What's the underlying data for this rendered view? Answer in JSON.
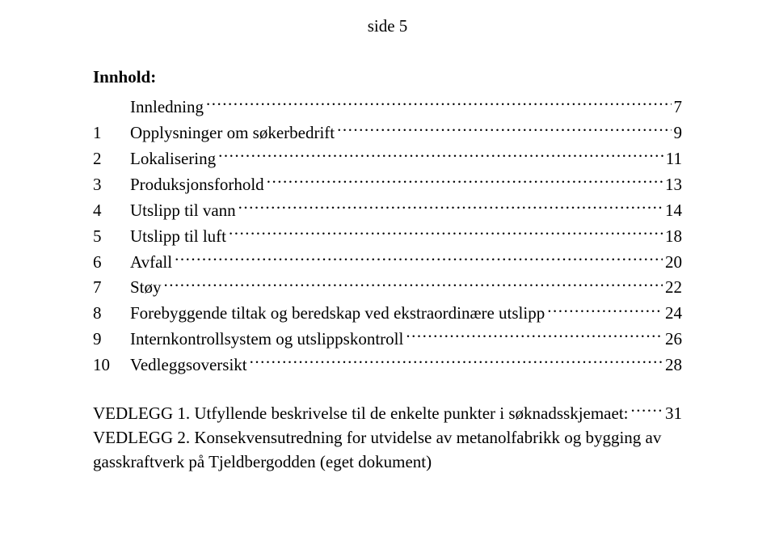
{
  "pageLabel": "side 5",
  "heading": "Innhold:",
  "toc": [
    {
      "num": "",
      "title": "Innledning",
      "page": "7"
    },
    {
      "num": "1",
      "title": "Opplysninger om søkerbedrift",
      "page": "9"
    },
    {
      "num": "2",
      "title": "Lokalisering",
      "page": "11"
    },
    {
      "num": "3",
      "title": "Produksjonsforhold",
      "page": "13"
    },
    {
      "num": "4",
      "title": "Utslipp til vann",
      "page": "14"
    },
    {
      "num": "5",
      "title": "Utslipp til luft",
      "page": "18"
    },
    {
      "num": "6",
      "title": "Avfall",
      "page": "20"
    },
    {
      "num": "7",
      "title": "Støy",
      "page": "22"
    },
    {
      "num": "8",
      "title": "Forebyggende tiltak og beredskap ved ekstraordinære utslipp",
      "page": "24"
    },
    {
      "num": "9",
      "title": "Internkontrollsystem og utslippskontroll",
      "page": "26"
    },
    {
      "num": "10",
      "title": "Vedleggsoversikt",
      "page": "28"
    }
  ],
  "appendix": [
    {
      "prefix": "VEDLEGG 1. Utfyllende beskrivelse til de enkelte punkter i søknadsskjemaet: ",
      "page": "31"
    },
    {
      "prefix": "VEDLEGG 2. Konsekvensutredning for utvidelse av metanolfabrikk og bygging av",
      "page": ""
    }
  ],
  "appendixTail": "gasskraftverk på Tjeldbergodden (eget dokument)"
}
